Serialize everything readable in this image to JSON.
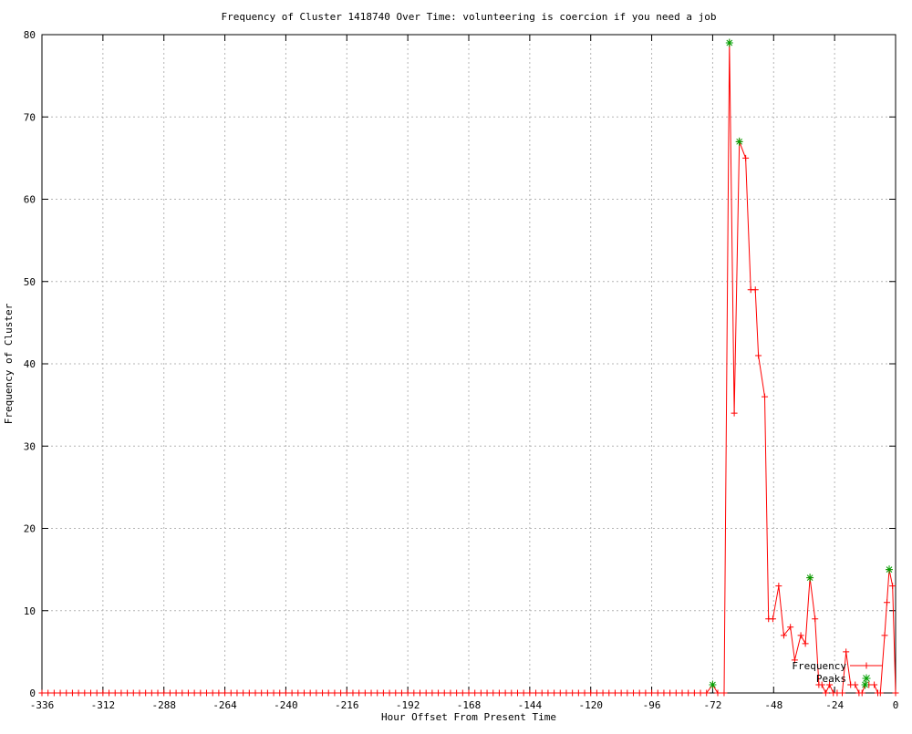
{
  "chart_data": {
    "type": "line",
    "title": "Frequency of Cluster 1418740 Over Time: volunteering is coercion if you need a job",
    "xlabel": "Hour Offset From Present Time",
    "ylabel": "Frequency of Cluster",
    "xlim": [
      -336,
      0
    ],
    "ylim": [
      0,
      80
    ],
    "xticks": [
      -336,
      -312,
      -288,
      -264,
      -240,
      -216,
      -192,
      -168,
      -144,
      -120,
      -96,
      -72,
      -48,
      -24,
      0
    ],
    "yticks": [
      0,
      10,
      20,
      30,
      40,
      50,
      60,
      70,
      80
    ],
    "grid": true,
    "legend_position": "bottom-right-inside",
    "colors": {
      "background": "#ffffff",
      "border": "#000000",
      "grid": "#b4b4b4",
      "text": "#000000",
      "frequency_line": "#ff0000",
      "peaks_marker": "#00a000"
    },
    "series": [
      {
        "name": "Frequency",
        "color": "#ff0000",
        "marker": "plus",
        "zeros": {
          "from": -336,
          "to": -78,
          "step": 2.4,
          "value": 0
        },
        "points": [
          [
            -76.8,
            0
          ],
          [
            -74.4,
            0
          ],
          [
            -72,
            1
          ],
          [
            -70,
            0
          ],
          [
            -67.5,
            0
          ],
          [
            -65.4,
            79
          ],
          [
            -63.5,
            34
          ],
          [
            -61.5,
            67
          ],
          [
            -59,
            65
          ],
          [
            -57,
            49
          ],
          [
            -55.2,
            49
          ],
          [
            -54,
            41
          ],
          [
            -51.5,
            36
          ],
          [
            -50,
            9
          ],
          [
            -48.3,
            9
          ],
          [
            -46,
            13
          ],
          [
            -44,
            7
          ],
          [
            -41.4,
            8
          ],
          [
            -39.7,
            4
          ],
          [
            -37.3,
            7
          ],
          [
            -35.5,
            6
          ],
          [
            -33.7,
            14
          ],
          [
            -31.7,
            9
          ],
          [
            -30.2,
            1
          ],
          [
            -29,
            1
          ],
          [
            -27.5,
            0
          ],
          [
            -26,
            1
          ],
          [
            -24.5,
            0
          ],
          [
            -23,
            0
          ],
          [
            -21,
            0
          ],
          [
            -19.5,
            5
          ],
          [
            -17.7,
            1
          ],
          [
            -15.9,
            1
          ],
          [
            -14.4,
            0
          ],
          [
            -13.2,
            0
          ],
          [
            -12,
            1
          ],
          [
            -10.5,
            1
          ],
          [
            -8.4,
            1
          ],
          [
            -7,
            0
          ],
          [
            -6,
            0
          ],
          [
            -4.3,
            7
          ],
          [
            -3.4,
            11
          ],
          [
            -2.5,
            15
          ],
          [
            -1.2,
            13
          ],
          [
            0,
            0
          ]
        ]
      },
      {
        "name": "Peaks",
        "color": "#00a000",
        "marker": "asterisk",
        "points": [
          [
            -72,
            1
          ],
          [
            -65.4,
            79
          ],
          [
            -61.5,
            67
          ],
          [
            -33.7,
            14
          ],
          [
            -12,
            1
          ],
          [
            -2.5,
            15
          ]
        ]
      }
    ]
  }
}
